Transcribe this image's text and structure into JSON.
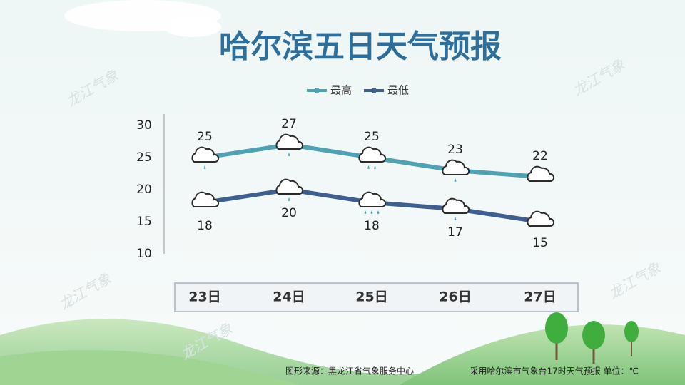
{
  "chart_data": {
    "type": "line",
    "title": "哈尔滨五日天气预报",
    "categories": [
      "23日",
      "24日",
      "25日",
      "26日",
      "27日"
    ],
    "series": [
      {
        "name": "最高",
        "color": "#4ea2b4",
        "values": [
          25,
          27,
          25,
          23,
          22
        ]
      },
      {
        "name": "最低",
        "color": "#3e5f90",
        "values": [
          18,
          20,
          18,
          17,
          15
        ]
      }
    ],
    "ylim": [
      10,
      30
    ],
    "yticks": [
      10,
      15,
      20,
      25,
      30
    ],
    "grid": false,
    "legend": "top",
    "source": "图形来源：黑龙江省气象服务中心",
    "note": "采用哈尔滨市气象台17时天气预报 单位：℃",
    "watermark": "龙江气象"
  }
}
